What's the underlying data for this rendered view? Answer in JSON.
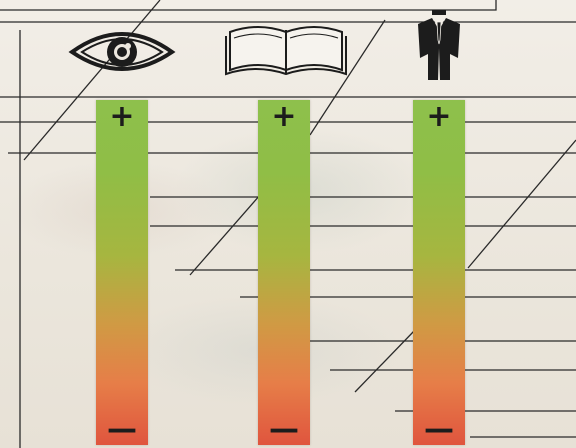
{
  "scales": [
    {
      "id": "sight",
      "icon": "eye-icon",
      "top_label": "+",
      "bottom_label": "—"
    },
    {
      "id": "reading",
      "icon": "book-icon",
      "top_label": "+",
      "bottom_label": "—"
    },
    {
      "id": "formal",
      "icon": "suit-icon",
      "top_label": "+",
      "bottom_label": "—"
    }
  ],
  "colors": {
    "bar_top": "#8ec04c",
    "bar_bottom": "#e0553e",
    "ink": "#1c1c1c"
  }
}
